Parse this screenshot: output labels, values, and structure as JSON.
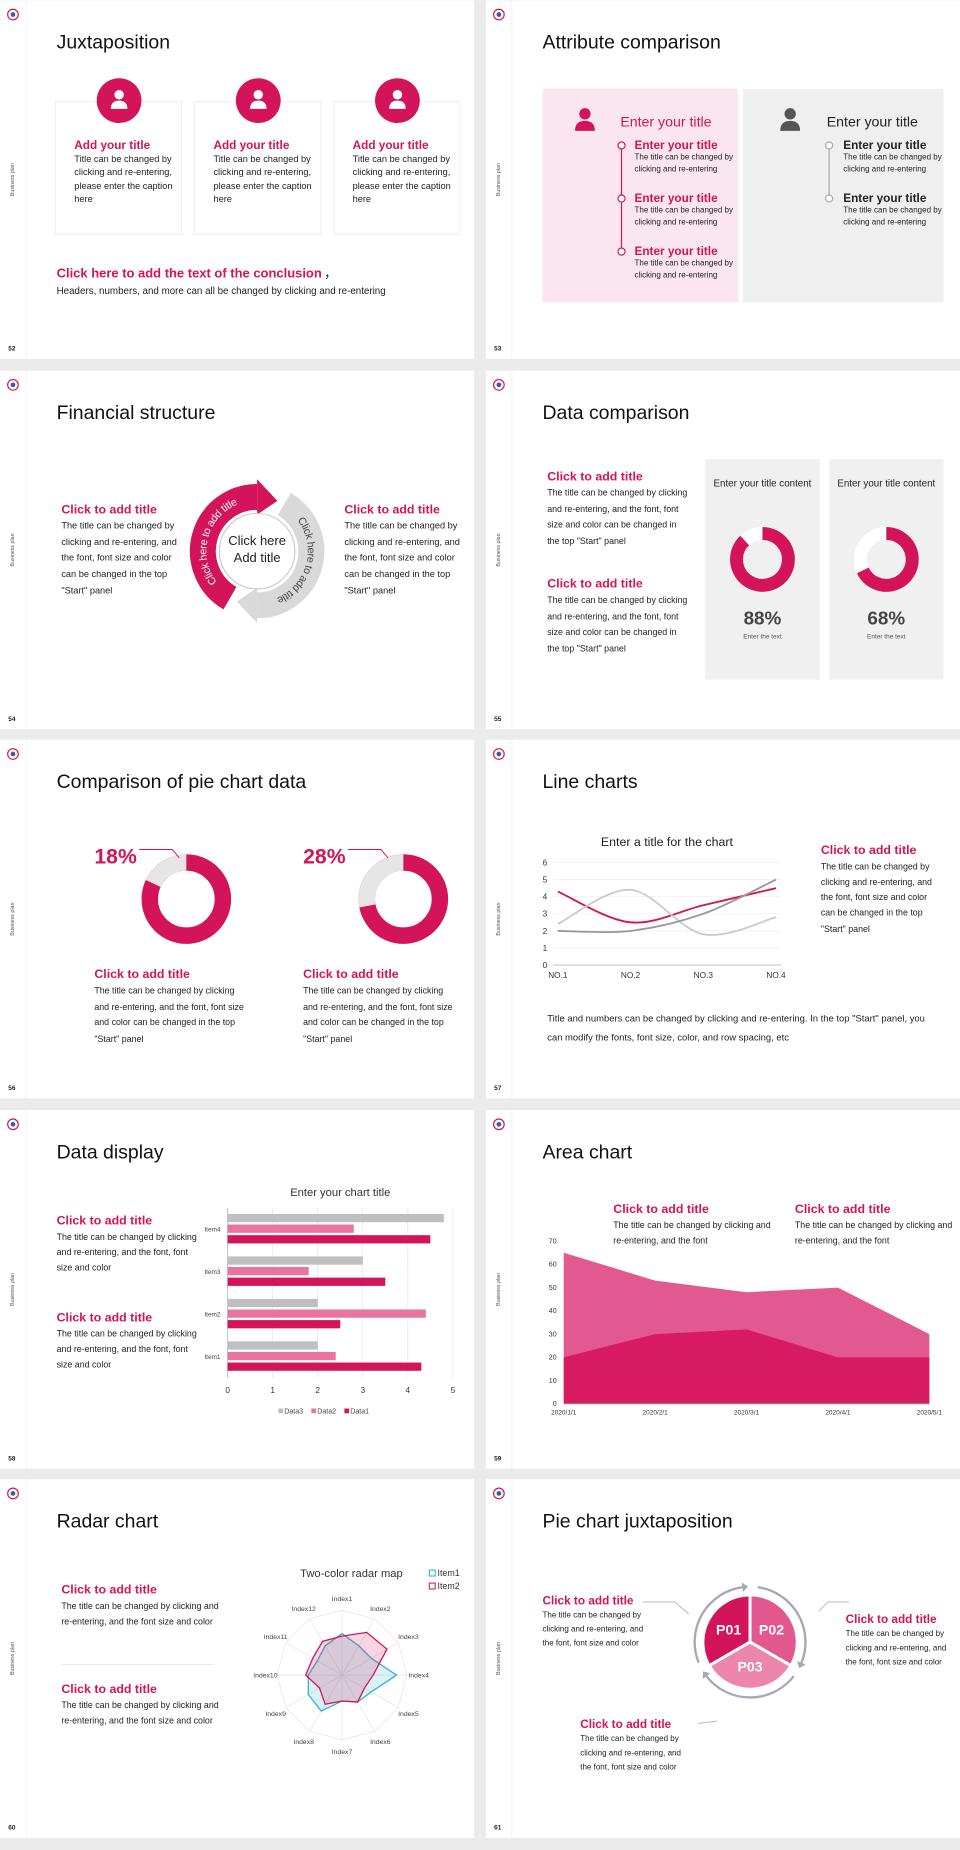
{
  "deck": {
    "side_label": "Business plan"
  },
  "slides": [
    {
      "page": 52,
      "title": "Juxtaposition",
      "cards": [
        {
          "title": "Add your title",
          "text": "Title can be changed by clicking and re-entering, please enter the caption here"
        },
        {
          "title": "Add your title",
          "text": "Title can be changed by clicking and re-entering, please enter the caption here"
        },
        {
          "title": "Add your title",
          "text": "Title can be changed by clicking and re-entering, please enter the caption here"
        }
      ],
      "conclusion_title": "Click here to add the text of the conclusion",
      "conclusion_mark": "，",
      "conclusion_text": "Headers, numbers, and more can all be changed by clicking and re-entering"
    },
    {
      "page": 53,
      "title": "Attribute comparison",
      "left": {
        "heading": "Enter your title",
        "items": [
          {
            "title": "Enter your title",
            "text": "The title can be changed by clicking and re-entering"
          },
          {
            "title": "Enter your title",
            "text": "The title can be changed by clicking and re-entering"
          },
          {
            "title": "Enter your title",
            "text": "The title can be changed by clicking and re-entering"
          }
        ]
      },
      "right": {
        "heading": "Enter your title",
        "items": [
          {
            "title": "Enter your title",
            "text": "The title can be changed by clicking and re-entering"
          },
          {
            "title": "Enter your title",
            "text": "The title can be changed by clicking and re-entering"
          }
        ]
      }
    },
    {
      "page": 54,
      "title": "Financial structure",
      "left": {
        "title": "Click to add title",
        "text": "The title can be changed by clicking and re-entering, and the font, font size and color can be changed in the top \"Start\" panel"
      },
      "right": {
        "title": "Click to add title",
        "text": "The title can be changed by clicking and re-entering, and the font, font size and color can be changed in the top \"Start\" panel"
      },
      "center_label": "Click here Add title",
      "arc_labels": [
        "Click here to add title",
        "Click here to add title"
      ]
    },
    {
      "page": 55,
      "title": "Data comparison",
      "blocks": [
        {
          "title": "Click to add title",
          "text": "The title can be changed by clicking and re-entering, and the font, font size and color can be changed in the top \"Start\" panel"
        },
        {
          "title": "Click to add title",
          "text": "The title can be changed by clicking and re-entering, and the font, font size and color can be changed in the top \"Start\" panel"
        }
      ]
    },
    {
      "page": 56,
      "title": "Comparison of pie chart data",
      "blocks": [
        {
          "title": "Click to add title",
          "text": "The title can be changed by clicking and re-entering, and the font, font size and color can be changed in the top \"Start\" panel"
        },
        {
          "title": "Click to add title",
          "text": "The title can be changed by clicking and re-entering, and the font, font size and color can be changed in the top \"Start\" panel"
        }
      ]
    },
    {
      "page": 57,
      "title": "Line charts",
      "side": {
        "title": "Click to add title",
        "text": "The title can be changed by clicking and re-entering, and the font, font size and color can be changed in the top \"Start\" panel"
      },
      "note": "Title and numbers can be changed by clicking and re-entering. In the top \"Start\" panel, you can modify the fonts, font size, color, and row spacing, etc"
    },
    {
      "page": 58,
      "title": "Data display",
      "blocks": [
        {
          "title": "Click to add title",
          "text": "The title can be changed by clicking and re-entering, and the font, font size and color"
        },
        {
          "title": "Click to add title",
          "text": "The title can be changed by clicking and re-entering, and the font, font size and color"
        }
      ]
    },
    {
      "page": 59,
      "title": "Area chart",
      "blocks": [
        {
          "title": "Click to add title",
          "text": "The title can be changed by clicking and re-entering, and the font"
        },
        {
          "title": "Click to add title",
          "text": "The title can be changed by clicking and re-entering, and the font"
        }
      ]
    },
    {
      "page": 60,
      "title": "Radar chart",
      "blocks": [
        {
          "title": "Click to add title",
          "text": "The title can be changed by clicking and re-entering, and the font size and color"
        },
        {
          "title": "Click to add title",
          "text": "The title can be changed by clicking and re-entering, and the font size and color"
        }
      ]
    },
    {
      "page": 61,
      "title": "Pie chart juxtaposition",
      "segments": [
        "P01",
        "P02",
        "P03"
      ],
      "blocks": [
        {
          "title": "Click to add title",
          "text": "The title can be changed by clicking and re-entering, and the font, font size and color"
        },
        {
          "title": "Click to add title",
          "text": "The title can be changed by clicking and re-entering, and the font, font size and color"
        },
        {
          "title": "Click to add title",
          "text": "The title can be changed by clicking and re-entering, and the font, font size and color"
        }
      ]
    }
  ],
  "chart_data": [
    {
      "type": "donut",
      "title": "Enter your title content",
      "values": [
        88
      ],
      "value_labels": [
        "88%"
      ],
      "caption": "Enter the text",
      "color": "#d4145a",
      "track_color": "#ffffff",
      "clockwise": true
    },
    {
      "type": "donut",
      "title": "Enter your title content",
      "values": [
        68
      ],
      "value_labels": [
        "68%"
      ],
      "caption": "Enter the text",
      "color": "#d4145a",
      "track_color": "#ffffff",
      "clockwise": true
    },
    {
      "type": "donut",
      "values": [
        18
      ],
      "value_labels": [
        "18%"
      ],
      "color": "#e6e6e6",
      "track_color": "#d4145a",
      "clockwise": false
    },
    {
      "type": "donut",
      "values": [
        28
      ],
      "value_labels": [
        "28%"
      ],
      "color": "#e6e6e6",
      "track_color": "#d4145a",
      "clockwise": false
    },
    {
      "type": "line",
      "title": "Enter a title for the chart",
      "categories": [
        "NO.1",
        "NO.2",
        "NO.3",
        "NO.4"
      ],
      "series": [
        {
          "color": "#d4145a",
          "values": [
            4.3,
            2.5,
            3.5,
            4.5
          ]
        },
        {
          "color": "#cccccc",
          "values": [
            2.4,
            4.4,
            1.8,
            2.8
          ]
        },
        {
          "color": "#9a9a9a",
          "values": [
            2,
            2,
            3,
            5
          ]
        }
      ],
      "ylim": [
        0,
        6
      ],
      "yticks": [
        0,
        1,
        2,
        3,
        4,
        5,
        6
      ],
      "grid": true,
      "smooth": true
    },
    {
      "type": "hbar",
      "title": "Enter your chart title",
      "categories": [
        "Item1",
        "Item2",
        "Item3",
        "Item4"
      ],
      "series": [
        {
          "name": "Data3",
          "color": "#bfbfbf",
          "values": [
            2,
            2,
            3,
            4.8
          ]
        },
        {
          "name": "Data2",
          "color": "#e8749f",
          "values": [
            2.4,
            4.4,
            1.8,
            2.8
          ]
        },
        {
          "name": "Data1",
          "color": "#d4145a",
          "values": [
            4.3,
            2.5,
            3.5,
            4.5
          ]
        }
      ],
      "xlim": [
        0,
        5
      ],
      "xticks": [
        0,
        1,
        2,
        3,
        4,
        5
      ],
      "grid": true,
      "legend": "bottom"
    },
    {
      "type": "area",
      "categories": [
        "2020/1/1",
        "2020/2/1",
        "2020/3/1",
        "2020/4/1",
        "2020/5/1"
      ],
      "series": [
        {
          "color": "#e2598f",
          "values": [
            65,
            53,
            48,
            50,
            30
          ]
        },
        {
          "color": "#d81b60",
          "values": [
            20,
            30,
            32,
            20,
            20
          ]
        }
      ],
      "ylim": [
        0,
        70
      ],
      "yticks": [
        0,
        10,
        20,
        30,
        40,
        50,
        60,
        70
      ]
    },
    {
      "type": "radar",
      "title": "Two-color radar map",
      "categories": [
        "Index1",
        "Index2",
        "Index3",
        "Index4",
        "Index5",
        "Index6",
        "Index7",
        "Index8",
        "Index9",
        "Index10",
        "Index11",
        "Index12"
      ],
      "series": [
        {
          "name": "Item1",
          "color": "#34b3c8",
          "values": [
            3.2,
            2.6,
            2.6,
            4.2,
            2.6,
            2.4,
            2.0,
            3.2,
            3.0,
            2.6,
            2.2,
            2.6
          ]
        },
        {
          "name": "Item2",
          "color": "#d4145a",
          "values": [
            3.0,
            3.8,
            4.0,
            2.4,
            2.0,
            2.4,
            2.0,
            2.6,
            2.0,
            2.8,
            2.6,
            3.0
          ]
        }
      ],
      "rlim": [
        0,
        5
      ],
      "rticks": [
        1,
        2,
        3,
        4,
        5
      ],
      "legend": "top-right"
    }
  ]
}
